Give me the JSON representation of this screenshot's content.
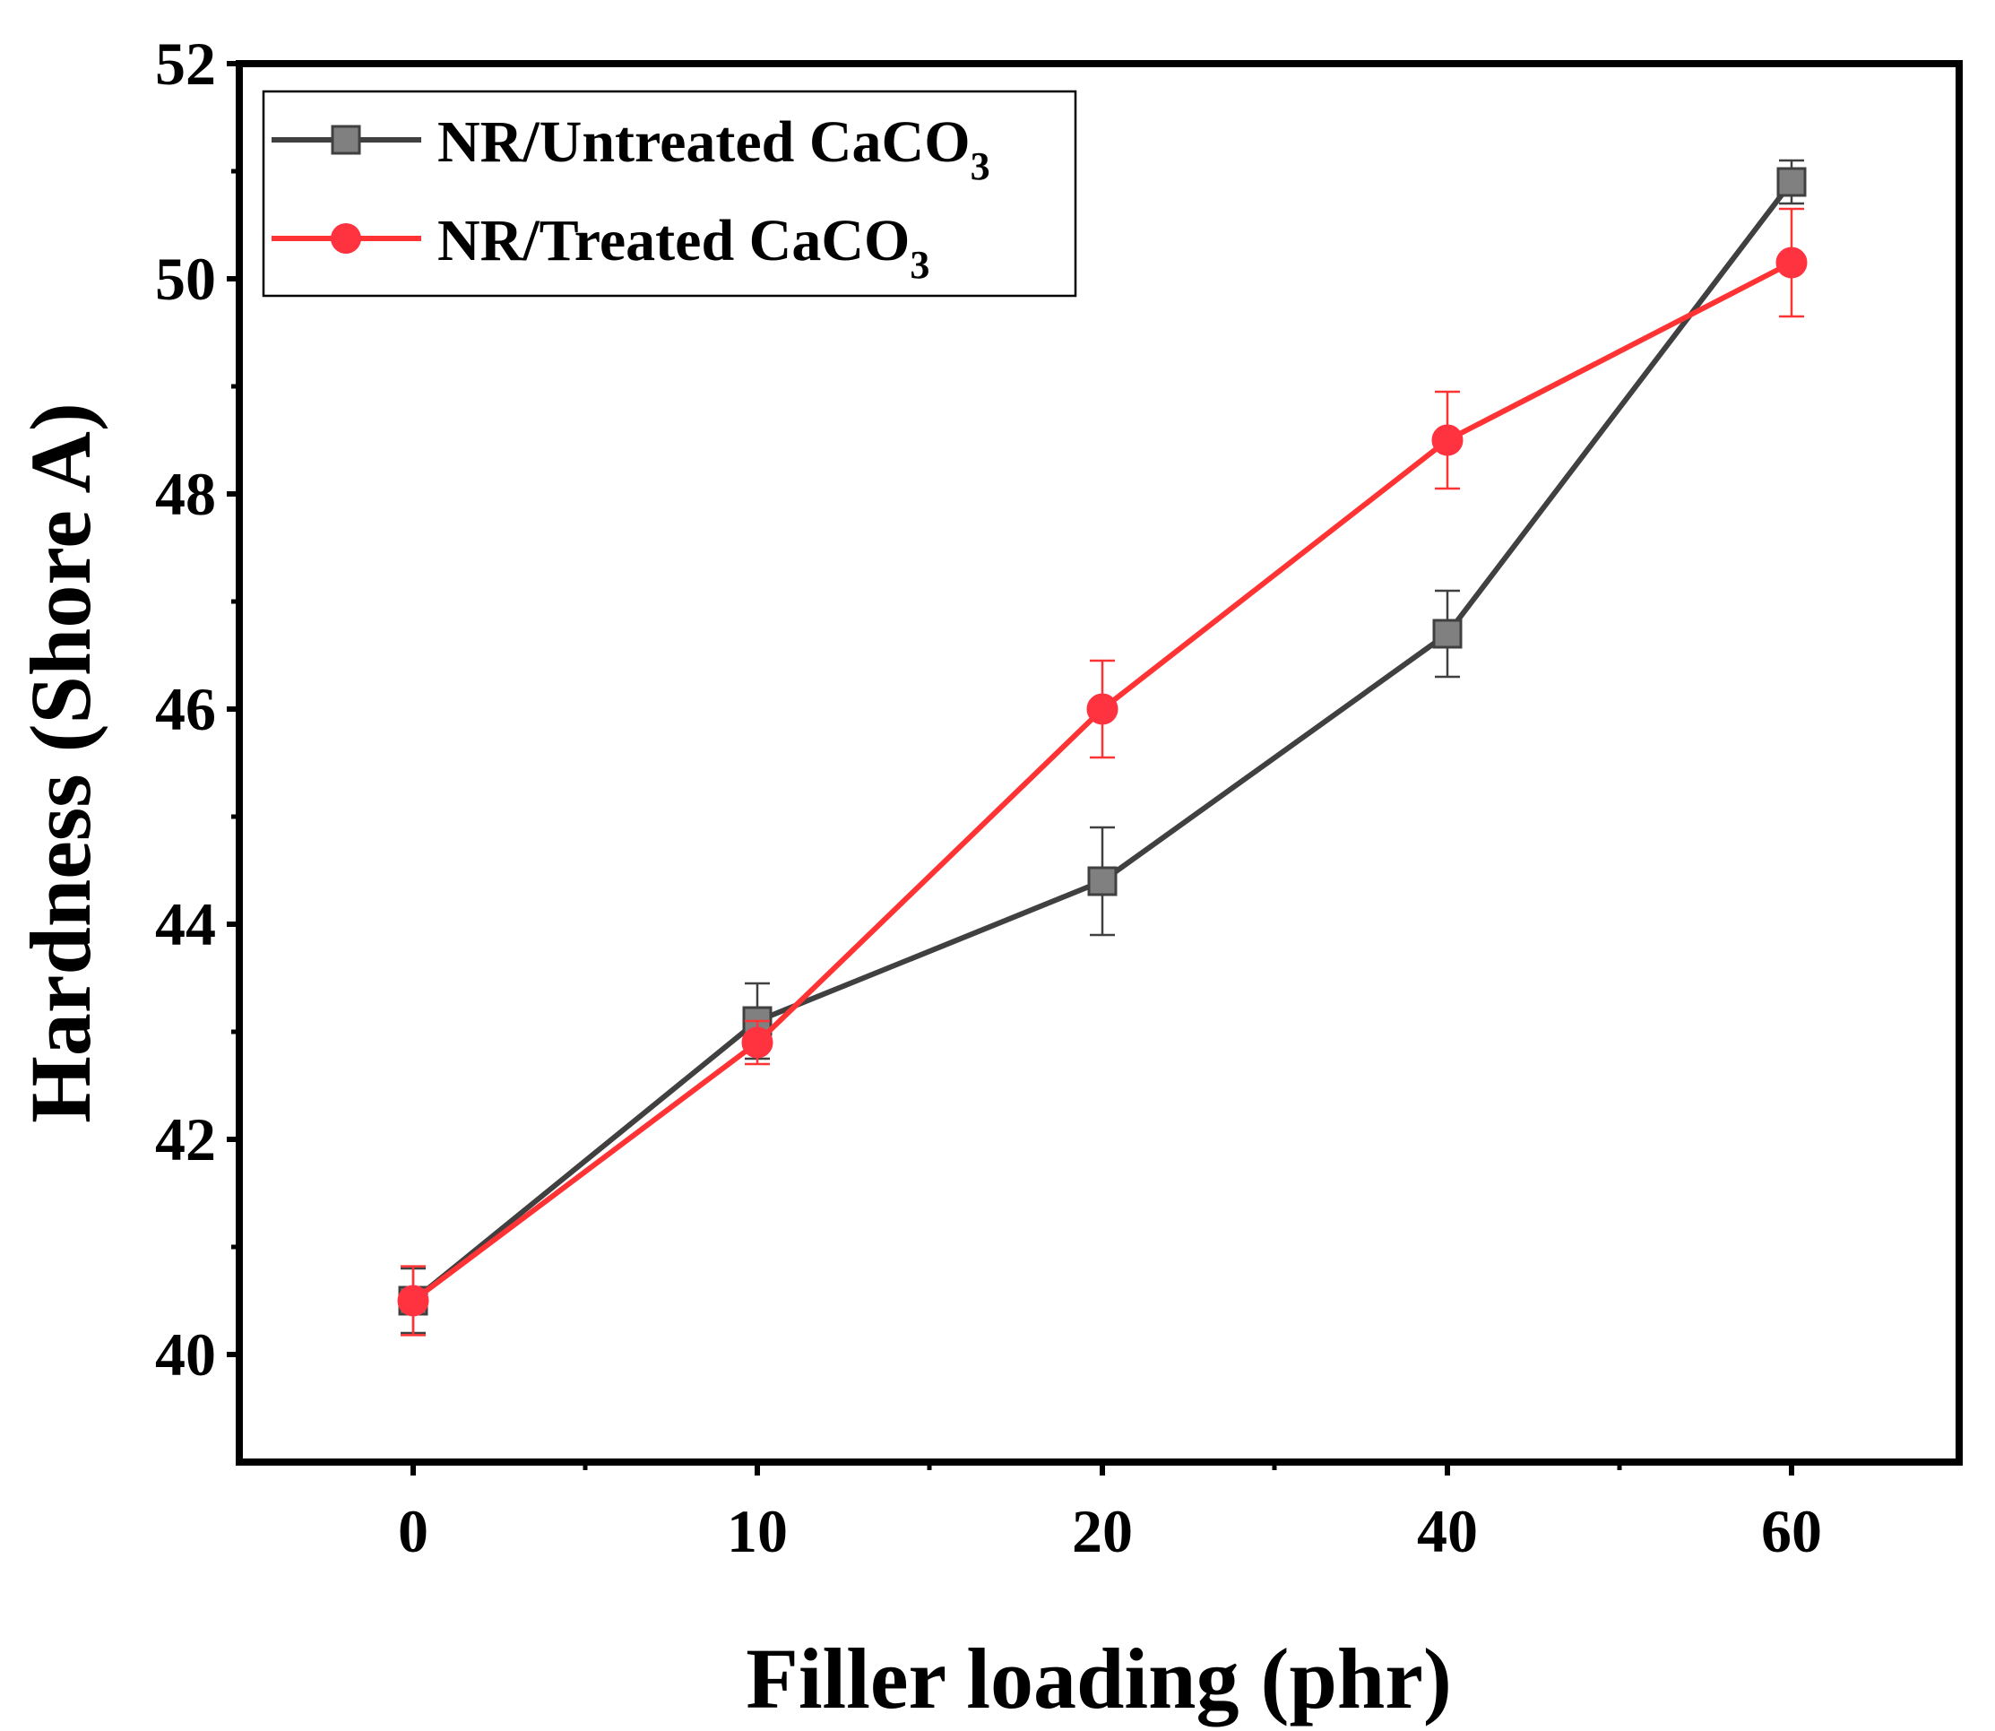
{
  "chart_data": {
    "type": "line",
    "title": "",
    "xlabel": "Filler loading (phr)",
    "ylabel": "Hardness (Shore A)",
    "categories": [
      "0",
      "10",
      "20",
      "40",
      "60"
    ],
    "ylim": [
      39,
      52
    ],
    "yticks": [
      40,
      42,
      44,
      46,
      48,
      50,
      52
    ],
    "grid": false,
    "legend_position": "top-left",
    "series": [
      {
        "name": "NR/Untreated CaCO",
        "subscript": "3",
        "color": "#404040",
        "marker": "square",
        "marker_color": "#808080",
        "values": [
          40.5,
          43.1,
          44.4,
          46.7,
          50.9
        ],
        "errors": [
          0.3,
          0.35,
          0.5,
          0.4,
          0.2
        ]
      },
      {
        "name": "NR/Treated CaCO",
        "subscript": "3",
        "color": "#ff3333",
        "marker": "circle",
        "marker_color": "#ff3340",
        "values": [
          40.5,
          42.9,
          46.0,
          48.5,
          50.15
        ],
        "errors": [
          0.32,
          0.2,
          0.45,
          0.45,
          0.5
        ]
      }
    ]
  }
}
